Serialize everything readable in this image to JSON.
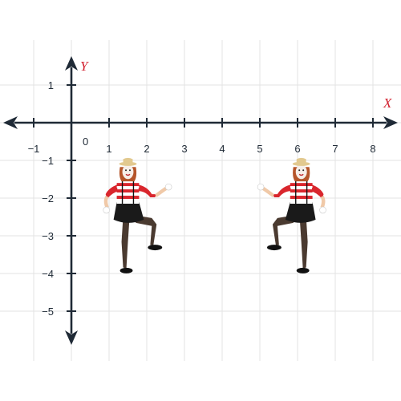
{
  "axes": {
    "x_name": "X",
    "y_name": "Y",
    "origin_label": "0",
    "x_ticks": [
      -1,
      1,
      2,
      3,
      4,
      5,
      6,
      7,
      8
    ],
    "y_ticks": [
      1,
      -1,
      -2,
      -3,
      -4,
      -5
    ],
    "x_range": [
      -1.8,
      8.6
    ],
    "y_range": [
      -5.8,
      1.8
    ]
  },
  "colors": {
    "axis": "#1f2a36",
    "axis_name": "#d2202f",
    "grid": "#e3e3e3",
    "stripe_red": "#d9262d",
    "skin": "#f0c9a8",
    "hair": "#b5552a",
    "hat": "#e2c98f",
    "skirt": "#1a1a1a",
    "tights": "#4a3a30"
  },
  "figures": [
    {
      "name": "mime-left",
      "facing": "right",
      "x_center": 1.5,
      "y_top": -1.05,
      "y_bottom": -4.05
    },
    {
      "name": "mime-right",
      "facing": "left",
      "x_center": 6.1,
      "y_top": -1.05,
      "y_bottom": -4.05
    }
  ]
}
